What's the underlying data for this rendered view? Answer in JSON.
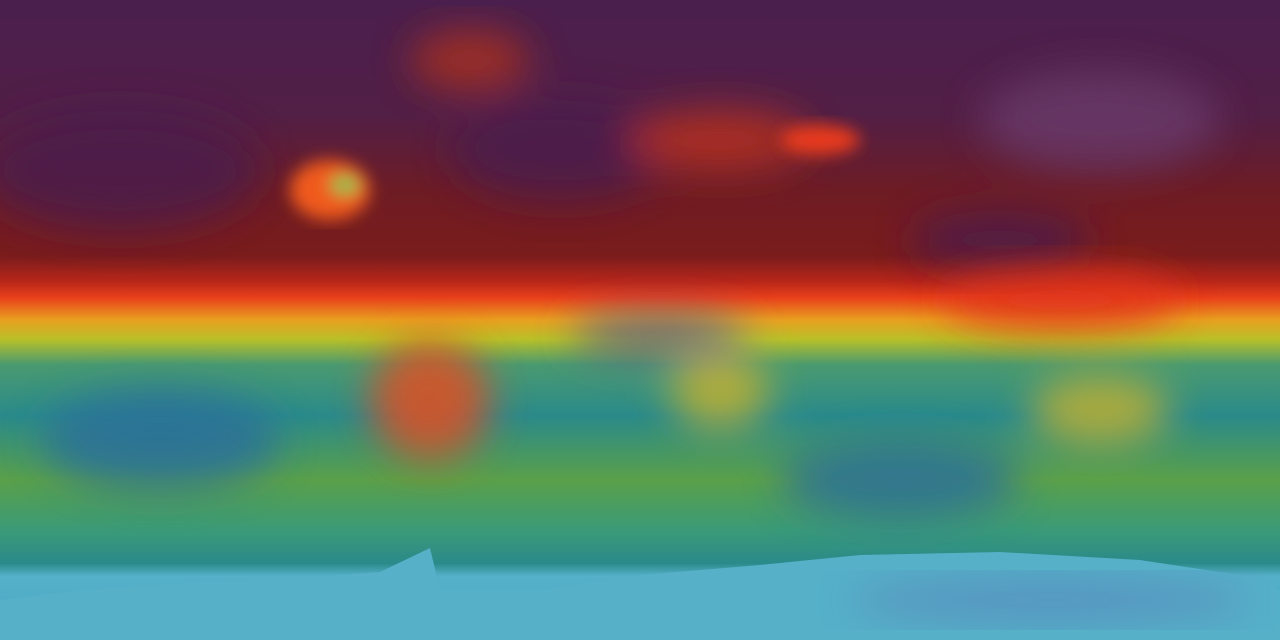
{
  "map": {
    "projection": "equirectangular",
    "colors": {
      "polar_north": "#4a1f4e",
      "high_band": "#7a1c1c",
      "peak": "#e8321a",
      "orange": "#f07a1a",
      "yellow": "#d8c020",
      "green": "#6aa83a",
      "teal": "#2a8a8a",
      "blue": "#2a6e98",
      "antarctica": "#55b0c8",
      "antarctica_shadow": "#5a78b8"
    }
  }
}
